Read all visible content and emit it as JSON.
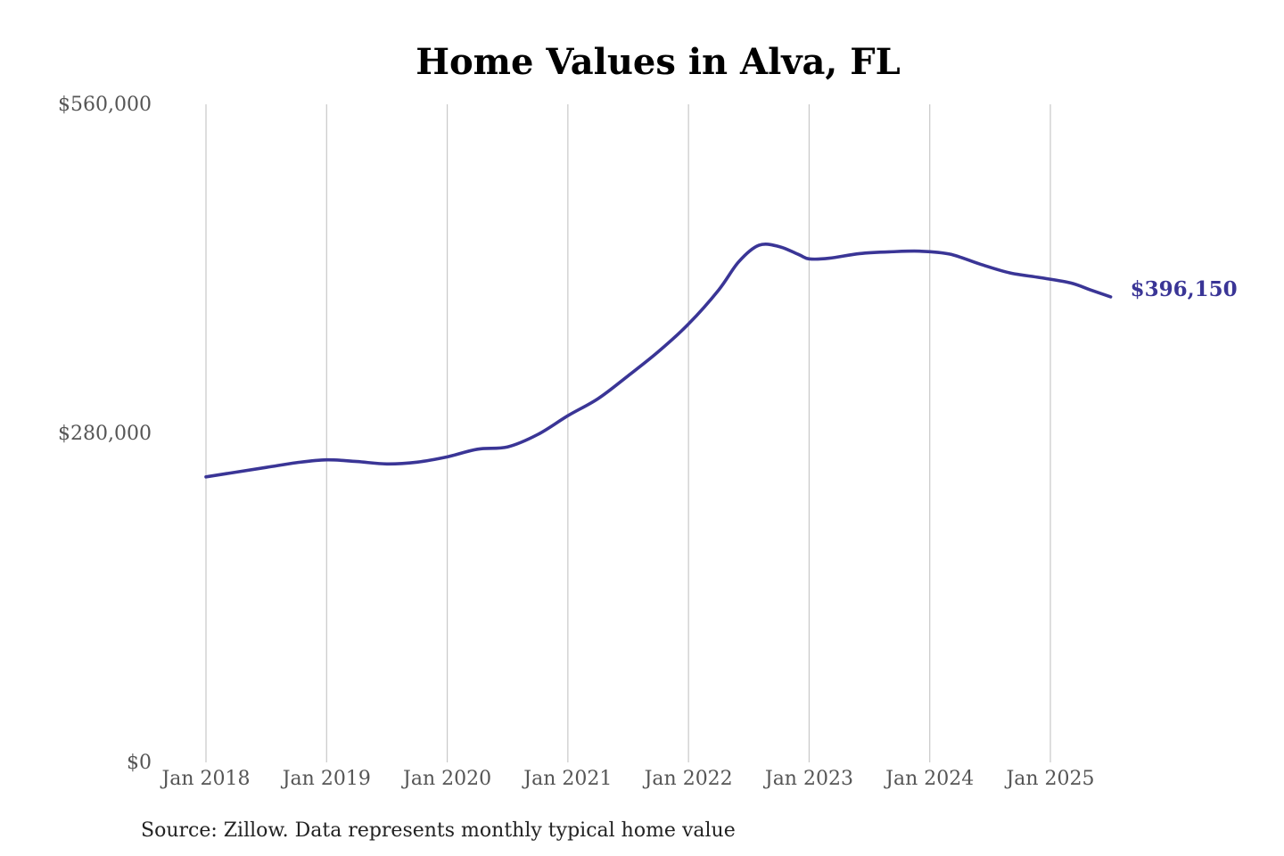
{
  "chart_data": {
    "type": "line",
    "title": "Home Values in Alva, FL",
    "source": "Source: Zillow. Data represents monthly typical home value",
    "xlabel": "",
    "ylabel": "",
    "ylim": [
      0,
      560000
    ],
    "y_ticks": [
      0,
      280000,
      560000
    ],
    "y_tick_labels": [
      "$0",
      "$280,000",
      "$560,000"
    ],
    "x_ticks": [
      "2018-01",
      "2019-01",
      "2020-01",
      "2021-01",
      "2022-01",
      "2023-01",
      "2024-01",
      "2025-01"
    ],
    "x_tick_labels": [
      "Jan 2018",
      "Jan 2019",
      "Jan 2020",
      "Jan 2021",
      "Jan 2022",
      "Jan 2023",
      "Jan 2024",
      "Jan 2025"
    ],
    "grid": "vertical",
    "line_color": "#3a3596",
    "end_label": "$396,150",
    "series": [
      {
        "points": [
          [
            "2018-01",
            243000
          ],
          [
            "2018-04",
            247000
          ],
          [
            "2018-07",
            251000
          ],
          [
            "2018-10",
            255000
          ],
          [
            "2019-01",
            257500
          ],
          [
            "2019-04",
            256000
          ],
          [
            "2019-07",
            254000
          ],
          [
            "2019-10",
            255500
          ],
          [
            "2020-01",
            260000
          ],
          [
            "2020-04",
            266500
          ],
          [
            "2020-07",
            268500
          ],
          [
            "2020-10",
            279000
          ],
          [
            "2021-01",
            295000
          ],
          [
            "2021-04",
            309500
          ],
          [
            "2021-07",
            329000
          ],
          [
            "2021-10",
            349500
          ],
          [
            "2022-01",
            373000
          ],
          [
            "2022-04",
            402000
          ],
          [
            "2022-06",
            426000
          ],
          [
            "2022-08",
            440000
          ],
          [
            "2022-10",
            439000
          ],
          [
            "2022-12",
            432000
          ],
          [
            "2023-01",
            428500
          ],
          [
            "2023-03",
            429000
          ],
          [
            "2023-06",
            433000
          ],
          [
            "2023-09",
            434500
          ],
          [
            "2023-12",
            435000
          ],
          [
            "2024-03",
            432500
          ],
          [
            "2024-06",
            424000
          ],
          [
            "2024-09",
            416500
          ],
          [
            "2024-12",
            412500
          ],
          [
            "2025-03",
            408000
          ],
          [
            "2025-05",
            402000
          ],
          [
            "2025-07",
            396150
          ]
        ]
      }
    ]
  }
}
